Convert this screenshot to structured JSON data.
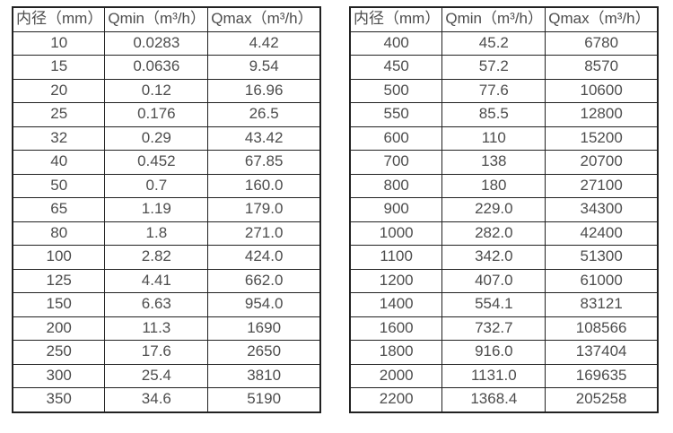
{
  "colors": {
    "background": "#ffffff",
    "border": "#212121",
    "text": "#4d4d4d"
  },
  "tables": [
    {
      "name": "flow-table-left",
      "headers": [
        "内径（mm）",
        "Qmin（m³/h）",
        "Qmax（m³/h）"
      ],
      "rows": [
        [
          "10",
          "0.0283",
          "4.42"
        ],
        [
          "15",
          "0.0636",
          "9.54"
        ],
        [
          "20",
          "0.12",
          "16.96"
        ],
        [
          "25",
          "0.176",
          "26.5"
        ],
        [
          "32",
          "0.29",
          "43.42"
        ],
        [
          "40",
          "0.452",
          "67.85"
        ],
        [
          "50",
          "0.7",
          "160.0"
        ],
        [
          "65",
          "1.19",
          "179.0"
        ],
        [
          "80",
          "1.8",
          "271.0"
        ],
        [
          "100",
          "2.82",
          "424.0"
        ],
        [
          "125",
          "4.41",
          "662.0"
        ],
        [
          "150",
          "6.63",
          "954.0"
        ],
        [
          "200",
          "11.3",
          "1690"
        ],
        [
          "250",
          "17.6",
          "2650"
        ],
        [
          "300",
          "25.4",
          "3810"
        ],
        [
          "350",
          "34.6",
          "5190"
        ]
      ]
    },
    {
      "name": "flow-table-right",
      "headers": [
        "内径（mm）",
        "Qmin（m³/h）",
        "Qmax（m³/h）"
      ],
      "rows": [
        [
          "400",
          "45.2",
          "6780"
        ],
        [
          "450",
          "57.2",
          "8570"
        ],
        [
          "500",
          "77.6",
          "10600"
        ],
        [
          "550",
          "85.5",
          "12800"
        ],
        [
          "600",
          "110",
          "15200"
        ],
        [
          "700",
          "138",
          "20700"
        ],
        [
          "800",
          "180",
          "27100"
        ],
        [
          "900",
          "229.0",
          "34300"
        ],
        [
          "1000",
          "282.0",
          "42400"
        ],
        [
          "1100",
          "342.0",
          "51300"
        ],
        [
          "1200",
          "407.0",
          "61000"
        ],
        [
          "1400",
          "554.1",
          "83121"
        ],
        [
          "1600",
          "732.7",
          "108566"
        ],
        [
          "1800",
          "916.0",
          "137404"
        ],
        [
          "2000",
          "1131.0",
          "169635"
        ],
        [
          "2200",
          "1368.4",
          "205258"
        ]
      ]
    }
  ]
}
